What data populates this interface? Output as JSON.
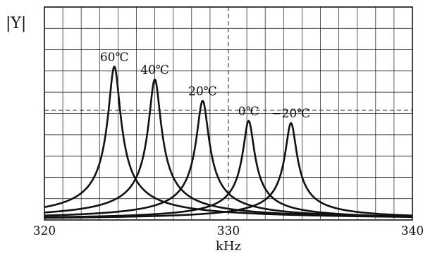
{
  "chart_data": {
    "type": "line",
    "xlabel": "kHz",
    "ylabel": "|Y|",
    "xlim": [
      320,
      340
    ],
    "ylim": [
      0,
      1
    ],
    "xticks": [
      320,
      330,
      340
    ],
    "grid": true,
    "dashed_reference": {
      "x": 330,
      "y": 0.515
    },
    "series": [
      {
        "name": "60℃",
        "peak_x": 323.8,
        "peak_y": 0.72,
        "gamma": 0.32
      },
      {
        "name": "40℃",
        "peak_x": 326.0,
        "peak_y": 0.66,
        "gamma": 0.32
      },
      {
        "name": "20℃",
        "peak_x": 328.6,
        "peak_y": 0.56,
        "gamma": 0.32
      },
      {
        "name": "0℃",
        "peak_x": 331.1,
        "peak_y": 0.465,
        "gamma": 0.3
      },
      {
        "name": "−20℃",
        "peak_x": 333.4,
        "peak_y": 0.455,
        "gamma": 0.3
      }
    ]
  }
}
